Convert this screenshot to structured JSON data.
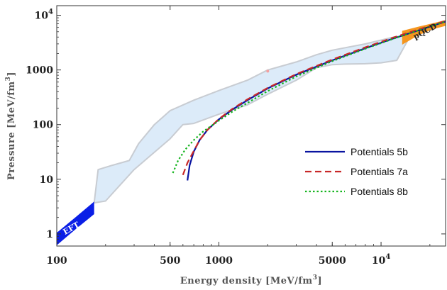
{
  "chart_data": {
    "type": "line",
    "xlabel": "Energy density [MeV/fm3]",
    "xlabel_parts": {
      "base": "Energy density [MeV/fm",
      "sup": "3",
      "end": "]"
    },
    "ylabel": "Pressure [MeV/fm3]",
    "ylabel_parts": {
      "base": "Pressure [MeV/fm",
      "sup": "3",
      "end": "]"
    },
    "xscale": "log",
    "yscale": "log",
    "xlim": [
      100,
      25000
    ],
    "ylim": [
      0.6,
      15000
    ],
    "grid": false,
    "legend_position": "right",
    "x_ticks": [
      {
        "value": 100,
        "label": "100"
      },
      {
        "value": 500,
        "label": "500"
      },
      {
        "value": 1000,
        "label": "1000"
      },
      {
        "value": 5000,
        "label": "5000"
      },
      {
        "value": 10000,
        "label": "10",
        "sup": "4"
      }
    ],
    "y_ticks": [
      {
        "value": 1,
        "label": "1"
      },
      {
        "value": 10,
        "label": "10"
      },
      {
        "value": 100,
        "label": "100"
      },
      {
        "value": 1000,
        "label": "1000"
      },
      {
        "value": 10000,
        "label": "10",
        "sup": "4"
      }
    ],
    "bands": [
      {
        "name": "allowed-region",
        "color": "#dcebf9",
        "edge_color": "#c8ccd2",
        "upper": [
          [
            170,
            3.7
          ],
          [
            180,
            15
          ],
          [
            220,
            18
          ],
          [
            280,
            22
          ],
          [
            320,
            45
          ],
          [
            400,
            100
          ],
          [
            500,
            180
          ],
          [
            700,
            280
          ],
          [
            1000,
            420
          ],
          [
            1500,
            650
          ],
          [
            2000,
            1000
          ],
          [
            3000,
            1400
          ],
          [
            4000,
            1900
          ],
          [
            5000,
            2300
          ],
          [
            8000,
            3000
          ],
          [
            12000,
            4000
          ],
          [
            15000,
            4300
          ]
        ],
        "lower": [
          [
            15000,
            4000
          ],
          [
            12500,
            1500
          ],
          [
            10000,
            1350
          ],
          [
            8000,
            1300
          ],
          [
            6000,
            1280
          ],
          [
            5000,
            1250
          ],
          [
            4000,
            1100
          ],
          [
            3000,
            650
          ],
          [
            2000,
            360
          ],
          [
            1500,
            230
          ],
          [
            1000,
            155
          ],
          [
            700,
            105
          ],
          [
            600,
            100
          ],
          [
            500,
            55
          ],
          [
            300,
            15
          ],
          [
            200,
            4
          ],
          [
            170,
            3.7
          ]
        ]
      },
      {
        "name": "EFT",
        "label": "EFT",
        "color": "#0a1ee6",
        "label_color": "#ffffff",
        "upper": [
          [
            100,
            1.05
          ],
          [
            130,
            2.0
          ],
          [
            170,
            3.9
          ]
        ],
        "lower": [
          [
            170,
            2.3
          ],
          [
            130,
            1.2
          ],
          [
            100,
            0.62
          ]
        ]
      },
      {
        "name": "pQCD",
        "label": "pQCD",
        "color": "#f5961e",
        "label_color": "#222222",
        "upper": [
          [
            13500,
            5200
          ],
          [
            17000,
            6200
          ],
          [
            21000,
            7200
          ],
          [
            25000,
            8200
          ]
        ],
        "lower": [
          [
            25000,
            6400
          ],
          [
            21000,
            5600
          ],
          [
            17000,
            4300
          ],
          [
            13500,
            2900
          ]
        ]
      }
    ],
    "series": [
      {
        "name": "Potentials 5b",
        "color": "#0a14a0",
        "dash": "solid",
        "x": [
          640,
          660,
          700,
          760,
          850,
          1000,
          1200,
          1500,
          2000,
          3000,
          5000,
          8000,
          12000,
          18000,
          25000
        ],
        "y": [
          9.5,
          18,
          32,
          52,
          80,
          125,
          185,
          280,
          460,
          820,
          1500,
          2500,
          3800,
          5600,
          7700
        ]
      },
      {
        "name": "Potentials 7a",
        "color": "#c82828",
        "dash": "dashed",
        "x": [
          600,
          640,
          700,
          760,
          850,
          1000,
          1200,
          1500,
          2000,
          3000,
          5000,
          8000,
          12000,
          18000,
          25000
        ],
        "y": [
          12,
          20,
          33,
          52,
          80,
          127,
          190,
          290,
          470,
          840,
          1550,
          2600,
          3950,
          5800,
          7900
        ]
      },
      {
        "name": "Potentials 8b",
        "color": "#14b41e",
        "dash": "dotted",
        "x": [
          520,
          560,
          620,
          700,
          800,
          1000,
          1200,
          1500,
          2000,
          3000,
          5000,
          8000,
          12000,
          18000,
          25000
        ],
        "y": [
          13,
          22,
          35,
          52,
          75,
          118,
          170,
          250,
          410,
          760,
          1450,
          2450,
          3750,
          5600,
          7700
        ]
      }
    ],
    "annotations": [
      {
        "name": "stray-point",
        "x": 2000,
        "y": 950,
        "color": "#f4a0a0"
      }
    ]
  }
}
